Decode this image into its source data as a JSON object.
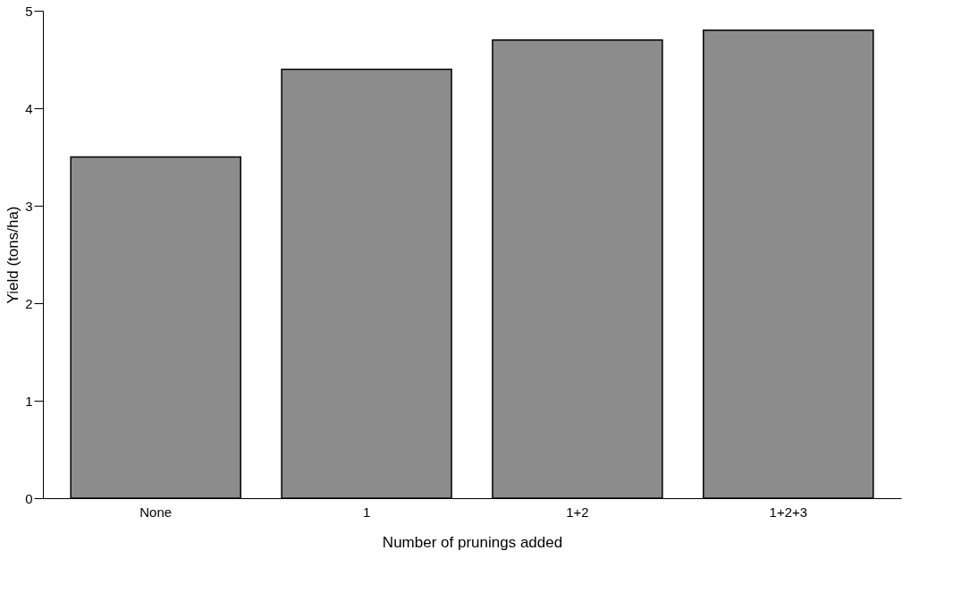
{
  "chart_data": {
    "type": "bar",
    "xlabel": "Number of prunings added",
    "ylabel": "Yield (tons/ha)",
    "categories": [
      "None",
      "1",
      "1+2",
      "1+2+3"
    ],
    "values": [
      3.5,
      4.4,
      4.7,
      4.8
    ],
    "color": "#8c8c8c",
    "ylim": [
      0,
      5
    ],
    "yticks": [
      0,
      1,
      2,
      3,
      4,
      5
    ],
    "grid": false
  }
}
